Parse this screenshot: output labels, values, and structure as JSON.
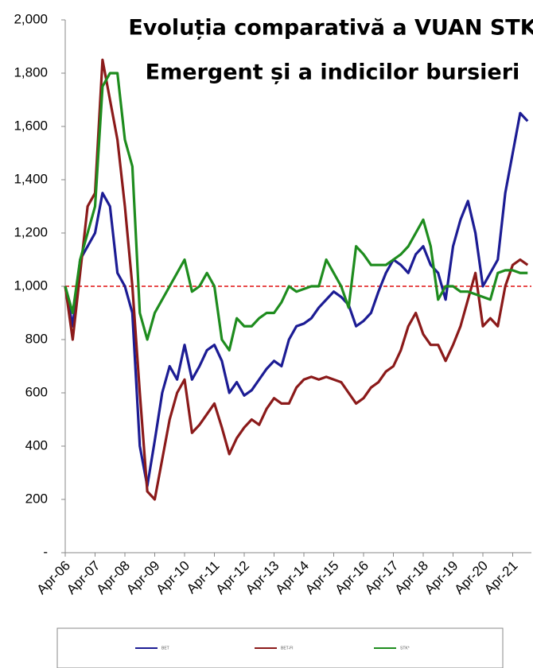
{
  "chart_data": {
    "type": "line",
    "title": [
      "Evoluția  comparativă  a VUAN STK",
      "Emergent și a indicilor bursieri"
    ],
    "categories": [
      "Apr-06",
      null,
      null,
      null,
      "Apr-07",
      null,
      null,
      null,
      "Apr-08",
      null,
      null,
      null,
      "Apr-09",
      null,
      null,
      null,
      "Apr-10",
      null,
      null,
      null,
      "Apr-11",
      null,
      null,
      null,
      "Apr-12",
      null,
      null,
      null,
      "Apr-13",
      null,
      null,
      null,
      "Apr-14",
      null,
      null,
      null,
      "Apr-15",
      null,
      null,
      null,
      "Apr-16",
      null,
      null,
      null,
      "Apr-17",
      null,
      null,
      null,
      "Apr-18",
      null,
      null,
      null,
      "Apr-19",
      null,
      null,
      null,
      "Apr-20",
      null,
      null,
      null,
      "Apr-21",
      null,
      null
    ],
    "series": [
      {
        "name": "BET",
        "color": "#1c1c94",
        "values": [
          1000,
          850,
          1100,
          1150,
          1200,
          1350,
          1300,
          1050,
          1000,
          900,
          400,
          250,
          420,
          600,
          700,
          650,
          780,
          650,
          700,
          760,
          780,
          720,
          600,
          640,
          590,
          610,
          650,
          690,
          720,
          700,
          800,
          850,
          860,
          880,
          920,
          950,
          980,
          960,
          930,
          850,
          870,
          900,
          980,
          1050,
          1100,
          1080,
          1050,
          1120,
          1150,
          1080,
          1050,
          950,
          1150,
          1250,
          1320,
          1200,
          1000,
          1050,
          1100,
          1350,
          1500,
          1650,
          1620
        ]
      },
      {
        "name": "BET-FI",
        "color": "#8b1a1a",
        "values": [
          1000,
          800,
          1050,
          1300,
          1350,
          1850,
          1700,
          1550,
          1300,
          1000,
          600,
          230,
          200,
          350,
          500,
          600,
          650,
          450,
          480,
          520,
          560,
          470,
          370,
          430,
          470,
          500,
          480,
          540,
          580,
          560,
          560,
          620,
          650,
          660,
          650,
          660,
          650,
          640,
          600,
          560,
          580,
          620,
          640,
          680,
          700,
          760,
          850,
          900,
          820,
          780,
          780,
          720,
          780,
          850,
          950,
          1050,
          850,
          880,
          850,
          1000,
          1080,
          1100,
          1080
        ]
      },
      {
        "name": "STK*",
        "color": "#1e8c1e",
        "values": [
          1000,
          900,
          1100,
          1200,
          1300,
          1750,
          1800,
          1800,
          1550,
          1450,
          900,
          800,
          900,
          950,
          1000,
          1050,
          1100,
          980,
          1000,
          1050,
          1000,
          800,
          760,
          880,
          850,
          850,
          880,
          900,
          900,
          940,
          1000,
          980,
          990,
          1000,
          1000,
          1100,
          1050,
          1000,
          920,
          1150,
          1120,
          1080,
          1080,
          1080,
          1100,
          1120,
          1150,
          1200,
          1250,
          1150,
          950,
          1000,
          1000,
          980,
          980,
          970,
          960,
          950,
          1050,
          1060,
          1060,
          1050,
          1050
        ]
      }
    ],
    "reference_line": 1000,
    "reference_color": "#e01010",
    "ylim": [
      0,
      2000
    ],
    "yticks": [
      {
        "value": 0,
        "label": "-"
      },
      200,
      400,
      600,
      800,
      {
        "value": 1000,
        "label": "1,000"
      },
      {
        "value": 1200,
        "label": "1,200"
      },
      {
        "value": 1400,
        "label": "1,400"
      },
      {
        "value": 1600,
        "label": "1,600"
      },
      {
        "value": 1800,
        "label": "1,800"
      },
      {
        "value": 2000,
        "label": "2,000"
      }
    ],
    "grid": false
  }
}
